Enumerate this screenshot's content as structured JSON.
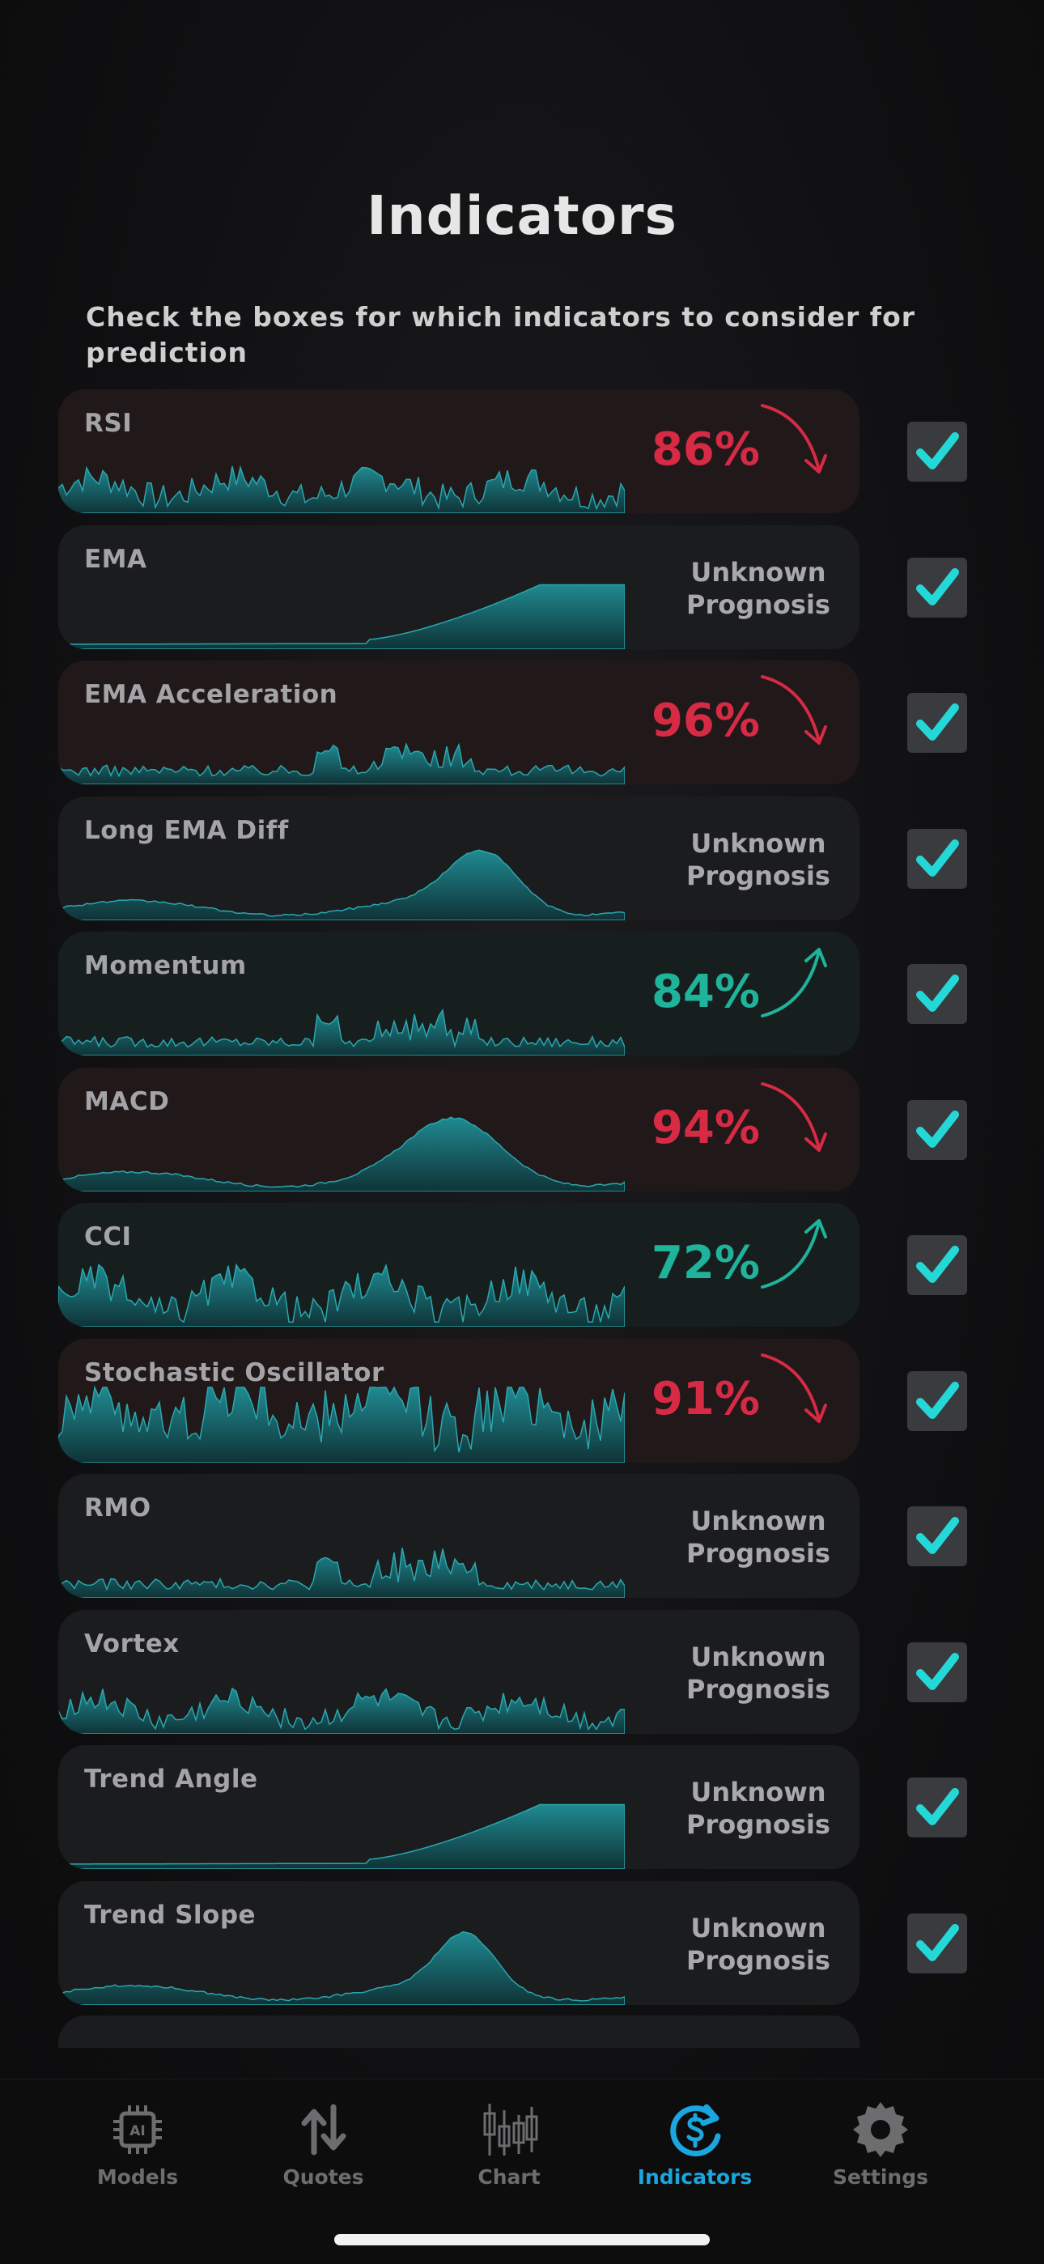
{
  "header": {
    "title": "Indicators",
    "subtitle": "Check the boxes for which indicators to consider for prediction"
  },
  "colors": {
    "bearish": "#d62a45",
    "bullish": "#1fb39b",
    "checkmark": "#25d8d8",
    "accent_active": "#1aa6df",
    "sparkline_fill": "#1d7f86"
  },
  "indicators": [
    {
      "name": "RSI",
      "prognosis": "86%",
      "direction": "down",
      "checked": true
    },
    {
      "name": "EMA",
      "prognosis": "Unknown Prognosis",
      "direction": "none",
      "checked": true
    },
    {
      "name": "EMA Acceleration",
      "prognosis": "96%",
      "direction": "down",
      "checked": true
    },
    {
      "name": "Long EMA Diff",
      "prognosis": "Unknown Prognosis",
      "direction": "none",
      "checked": true
    },
    {
      "name": "Momentum",
      "prognosis": "84%",
      "direction": "up",
      "checked": true
    },
    {
      "name": "MACD",
      "prognosis": "94%",
      "direction": "down",
      "checked": true
    },
    {
      "name": "CCI",
      "prognosis": "72%",
      "direction": "up",
      "checked": true
    },
    {
      "name": "Stochastic Oscillator",
      "prognosis": "91%",
      "direction": "down",
      "checked": true
    },
    {
      "name": "RMO",
      "prognosis": "Unknown Prognosis",
      "direction": "none",
      "checked": true
    },
    {
      "name": "Vortex",
      "prognosis": "Unknown Prognosis",
      "direction": "none",
      "checked": true
    },
    {
      "name": "Trend Angle",
      "prognosis": "Unknown Prognosis",
      "direction": "none",
      "checked": true
    },
    {
      "name": "Trend Slope",
      "prognosis": "Unknown Prognosis",
      "direction": "none",
      "checked": true
    }
  ],
  "tabbar": {
    "items": [
      {
        "label": "Models",
        "icon": "ai-chip-icon",
        "active": false
      },
      {
        "label": "Quotes",
        "icon": "up-down-arrows-icon",
        "active": false
      },
      {
        "label": "Chart",
        "icon": "candlestick-icon",
        "active": false
      },
      {
        "label": "Indicators",
        "icon": "refresh-dollar-icon",
        "active": true
      },
      {
        "label": "Settings",
        "icon": "gear-icon",
        "active": false
      }
    ]
  }
}
